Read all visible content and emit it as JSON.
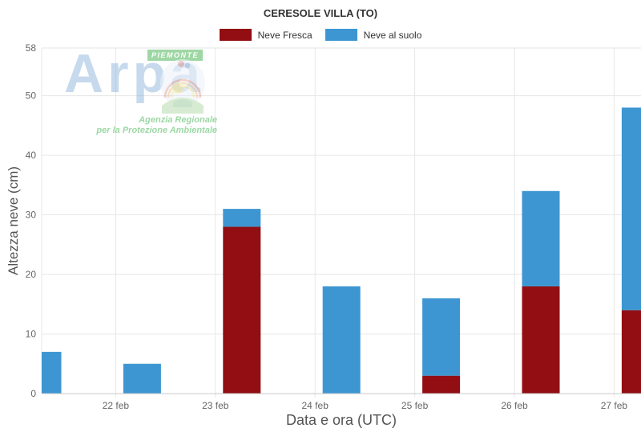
{
  "chart_data": {
    "type": "bar",
    "stacked": true,
    "title": "CERESOLE VILLA (TO)",
    "xlabel": "Data e ora (UTC)",
    "ylabel": "Altezza neve (cm)",
    "ylim": [
      0,
      58
    ],
    "yticks": [
      0,
      10,
      20,
      30,
      40,
      50,
      58
    ],
    "x_tick_labels": [
      "22 feb",
      "23 feb",
      "24 feb",
      "25 feb",
      "26 feb",
      "27 feb"
    ],
    "grid": true,
    "legend_position": "top-center",
    "series": [
      {
        "name": "Neve Fresca",
        "color": "#920e12",
        "values": [
          0,
          0,
          28,
          0,
          3,
          18,
          14
        ]
      },
      {
        "name": "Neve al suolo",
        "color": "#3d96d2",
        "values": [
          7,
          5,
          3,
          18,
          13,
          16,
          34
        ]
      }
    ],
    "stack_totals": [
      7,
      5,
      31,
      18,
      16,
      34,
      48
    ],
    "notes": "7 stacked bars; first and last bars are clipped at the plot edges; bars sit ~6h to the right of each day tick"
  },
  "watermark": {
    "brand": "Arpa",
    "badge": "PIEMONTE",
    "tagline1": "Agenzia Regionale",
    "tagline2": "per la Protezione Ambientale"
  }
}
